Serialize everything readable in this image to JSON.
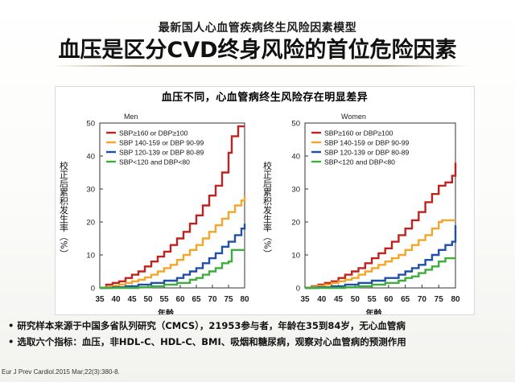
{
  "slide": {
    "subtitle": "最新国人心血管疾病终生风险因素模型",
    "title": "血压是区分CVD终身风险的首位危险因素",
    "chart_header": "血压不同，心血管病终生风险存在明显差异",
    "bullets": [
      "•  研究样本来源于中国多省队列研究（CMCS），21953参与者，年龄在35到84岁，无心血管病",
      "•  选取六个指标：血压，非HDL-C、HDL-C、BMI、吸烟和糖尿病，观察对心血管病的预测作用"
    ],
    "citation": "Eur J Prev Cardiol.2015 Mar;22(3):380-8."
  },
  "chart_data": [
    {
      "type": "line",
      "title": "Men",
      "xlabel": "年龄",
      "ylabel": "校正后累积发生率（%）",
      "xlim": [
        35,
        80
      ],
      "ylim": [
        0,
        50
      ],
      "xticks": [
        35,
        40,
        45,
        50,
        55,
        60,
        65,
        70,
        75,
        80
      ],
      "yticks": [
        0,
        10,
        20,
        30,
        40,
        50
      ],
      "legend_position": "top-left",
      "series": [
        {
          "name": "SBP≥160 or DBP≥100",
          "color": "#c0221f",
          "x": [
            35,
            37,
            39,
            41,
            43,
            45,
            47,
            49,
            51,
            53,
            55,
            57,
            59,
            61,
            63,
            65,
            67,
            69,
            71,
            73,
            75,
            76,
            78,
            80
          ],
          "y": [
            0,
            1,
            1.5,
            2,
            3,
            4,
            5,
            6.5,
            8,
            9.5,
            11,
            13,
            15,
            17,
            19.5,
            22,
            25,
            28,
            31,
            35,
            41,
            46,
            49,
            49
          ]
        },
        {
          "name": "SBP 140-159 or DBP 90-99",
          "color": "#f4a629",
          "x": [
            35,
            37,
            39,
            41,
            43,
            45,
            47,
            49,
            51,
            53,
            55,
            57,
            59,
            61,
            63,
            65,
            67,
            69,
            71,
            73,
            75,
            77,
            79,
            80
          ],
          "y": [
            0,
            0.3,
            0.6,
            1,
            1.5,
            2,
            2.5,
            3.2,
            4,
            5,
            6,
            7,
            8.5,
            10,
            11.5,
            13,
            15,
            17,
            19,
            21,
            23,
            25,
            26.5,
            28
          ]
        },
        {
          "name": "SBP 120-139 or DBP 80-89",
          "color": "#1f4fa8",
          "x": [
            35,
            39,
            43,
            47,
            51,
            55,
            59,
            61,
            63,
            65,
            67,
            69,
            71,
            73,
            75,
            77,
            79,
            80
          ],
          "y": [
            0,
            0.2,
            0.5,
            1,
            1.5,
            2.2,
            3,
            4,
            5,
            6,
            7.5,
            9,
            10.5,
            12.5,
            14,
            16,
            18,
            19.5
          ]
        },
        {
          "name": "SBP<120 and DBP<80",
          "color": "#3cae3c",
          "x": [
            35,
            43,
            47,
            51,
            55,
            59,
            63,
            65,
            67,
            69,
            71,
            73,
            75,
            76,
            80
          ],
          "y": [
            0,
            0,
            0.2,
            0.5,
            1,
            1.5,
            2.5,
            3,
            4,
            5,
            6,
            7.5,
            8,
            11.5,
            11.5
          ]
        }
      ]
    },
    {
      "type": "line",
      "title": "Women",
      "xlabel": "年龄",
      "ylabel": "校正后累积发生率（%）",
      "xlim": [
        35,
        80
      ],
      "ylim": [
        0,
        50
      ],
      "xticks": [
        35,
        40,
        45,
        50,
        55,
        60,
        65,
        70,
        75,
        80
      ],
      "yticks": [
        0,
        10,
        20,
        30,
        40,
        50
      ],
      "legend_position": "top-left",
      "series": [
        {
          "name": "SBP≥160 or DBP≥100",
          "color": "#c0221f",
          "x": [
            35,
            37,
            39,
            41,
            43,
            45,
            47,
            49,
            51,
            53,
            55,
            57,
            59,
            61,
            63,
            65,
            67,
            69,
            71,
            73,
            75,
            77,
            79,
            80
          ],
          "y": [
            0,
            0.5,
            1,
            1.5,
            2,
            3,
            4,
            5,
            6,
            7.5,
            9,
            10.5,
            12,
            14,
            16,
            18,
            20.5,
            23,
            26,
            28.5,
            31,
            32,
            34,
            38
          ]
        },
        {
          "name": "SBP 140-159 or DBP 90-99",
          "color": "#f4a629",
          "x": [
            35,
            37,
            39,
            41,
            43,
            45,
            47,
            49,
            51,
            53,
            55,
            57,
            59,
            61,
            63,
            65,
            67,
            69,
            71,
            73,
            75,
            76,
            80
          ],
          "y": [
            0,
            0.3,
            0.6,
            1,
            1.5,
            2,
            2.5,
            3,
            4,
            5,
            6,
            7,
            8,
            9,
            10,
            11.5,
            13,
            14.5,
            16,
            18,
            20,
            20.5,
            20.5
          ]
        },
        {
          "name": "SBP 120-139 or DBP 80-89",
          "color": "#1f4fa8",
          "x": [
            35,
            39,
            43,
            47,
            51,
            55,
            59,
            63,
            65,
            67,
            69,
            71,
            73,
            75,
            77,
            79,
            80
          ],
          "y": [
            0,
            0.2,
            0.5,
            1,
            1.5,
            2.2,
            3,
            4,
            5,
            6,
            7,
            8.5,
            10,
            11.5,
            13,
            14,
            19
          ]
        },
        {
          "name": "SBP<120 and DBP<80",
          "color": "#3cae3c",
          "x": [
            35,
            43,
            47,
            51,
            55,
            59,
            63,
            65,
            67,
            69,
            71,
            73,
            75,
            77,
            80
          ],
          "y": [
            0,
            0,
            0.2,
            0.5,
            1,
            1.5,
            2.2,
            3,
            3.5,
            4.5,
            5.5,
            6.5,
            8,
            9,
            9
          ]
        }
      ]
    }
  ]
}
